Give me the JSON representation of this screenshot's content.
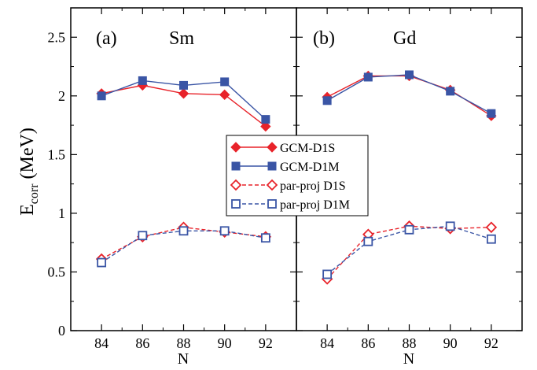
{
  "chart_data": [
    {
      "type": "line",
      "panel_label": "(a)",
      "panel_title": "Sm",
      "x": [
        84,
        86,
        88,
        90,
        92
      ],
      "xlabel": "N",
      "ylabel_main": "E",
      "ylabel_sub": "corr",
      "ylabel_unit": " (MeV)",
      "xlim": [
        82.5,
        93.5
      ],
      "ylim": [
        0,
        2.75
      ],
      "xticks": [
        "84",
        "86",
        "88",
        "90",
        "92"
      ],
      "yticks": [
        "0",
        "0.5",
        "1",
        "1.5",
        "2",
        "2.5"
      ],
      "grid": false,
      "series": [
        {
          "name": "GCM-D1S",
          "values": [
            2.02,
            2.09,
            2.02,
            2.01,
            1.74
          ],
          "color": "#e8232a",
          "marker": "diamond-filled",
          "dash": "solid"
        },
        {
          "name": "GCM-D1M",
          "values": [
            2.0,
            2.13,
            2.09,
            2.12,
            1.8
          ],
          "color": "#3a55a5",
          "marker": "square-filled",
          "dash": "solid"
        },
        {
          "name": "par-proj D1S",
          "values": [
            0.61,
            0.8,
            0.88,
            0.84,
            0.8
          ],
          "color": "#e8232a",
          "marker": "diamond-open",
          "dash": "dashed"
        },
        {
          "name": "par-proj D1M",
          "values": [
            0.58,
            0.81,
            0.85,
            0.85,
            0.79
          ],
          "color": "#3a55a5",
          "marker": "square-open",
          "dash": "dashed"
        }
      ]
    },
    {
      "type": "line",
      "panel_label": "(b)",
      "panel_title": "Gd",
      "x": [
        84,
        86,
        88,
        90,
        92
      ],
      "xlabel": "N",
      "xlim": [
        82.5,
        93.5
      ],
      "ylim": [
        0,
        2.75
      ],
      "xticks": [
        "84",
        "86",
        "88",
        "90",
        "92"
      ],
      "grid": false,
      "legend_position": "left-center",
      "series": [
        {
          "name": "GCM-D1S",
          "values": [
            1.99,
            2.17,
            2.17,
            2.05,
            1.83
          ],
          "color": "#e8232a",
          "marker": "diamond-filled",
          "dash": "solid"
        },
        {
          "name": "GCM-D1M",
          "values": [
            1.96,
            2.16,
            2.18,
            2.04,
            1.85
          ],
          "color": "#3a55a5",
          "marker": "square-filled",
          "dash": "solid"
        },
        {
          "name": "par-proj D1S",
          "values": [
            0.44,
            0.82,
            0.89,
            0.87,
            0.88
          ],
          "color": "#e8232a",
          "marker": "diamond-open",
          "dash": "dashed"
        },
        {
          "name": "par-proj D1M",
          "values": [
            0.48,
            0.76,
            0.86,
            0.89,
            0.78
          ],
          "color": "#3a55a5",
          "marker": "square-open",
          "dash": "dashed"
        }
      ]
    }
  ]
}
